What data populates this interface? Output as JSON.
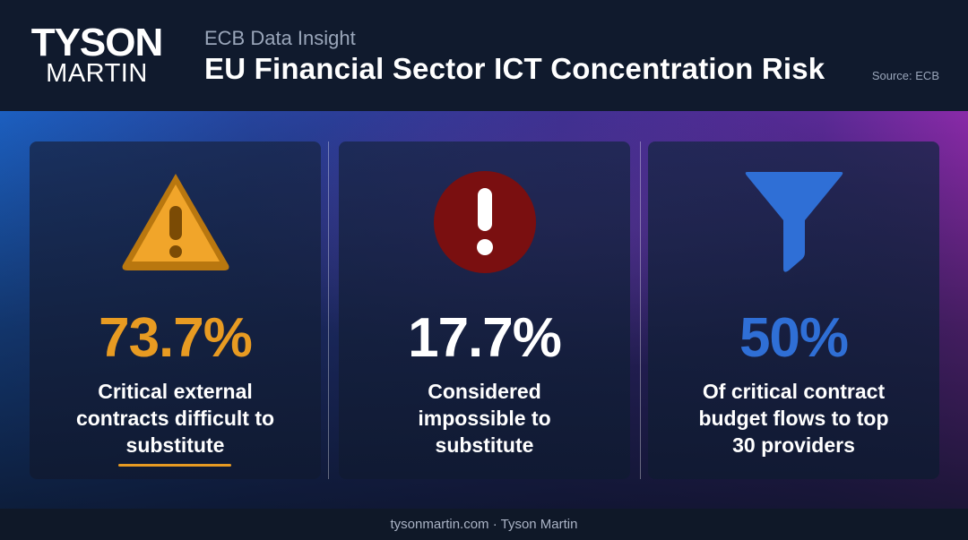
{
  "header": {
    "logo_top": "TYSON",
    "logo_bottom": "MARTIN",
    "subtitle": "ECB Data Insight",
    "title": "EU Financial Sector ICT Concentration Risk",
    "source": "Source: ECB"
  },
  "cards": [
    {
      "icon": "warning-triangle-icon",
      "stat": "73.7%",
      "stat_color": "#e89b22",
      "lines": [
        "Critical external",
        "contracts difficult to",
        "substitute"
      ]
    },
    {
      "icon": "exclamation-circle-icon",
      "stat": "17.7%",
      "stat_color": "#ffffff",
      "lines": [
        "Considered",
        "impossible to",
        "substitute"
      ]
    },
    {
      "icon": "funnel-icon",
      "stat": "50%",
      "stat_color": "#2f6fd6",
      "lines": [
        "Of critical contract",
        "budget flows to top",
        "30 providers"
      ]
    }
  ],
  "colors": {
    "accent_orange": "#e89b22",
    "accent_red": "#7a0f10",
    "accent_blue": "#2f6fd6"
  },
  "footer": {
    "text": "tysonmartin.com · Tyson Martin"
  }
}
